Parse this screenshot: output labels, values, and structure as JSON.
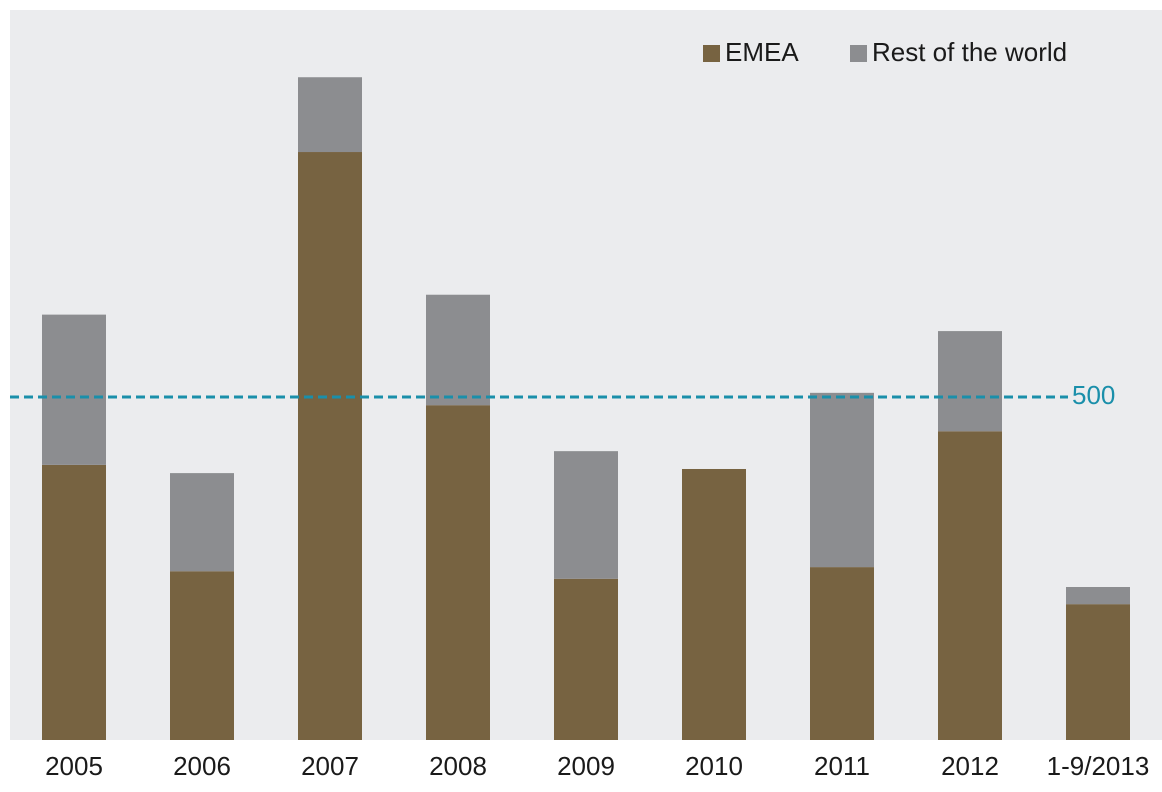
{
  "chart_data": {
    "type": "stacked_bar",
    "categories": [
      "2005",
      "2006",
      "2007",
      "2008",
      "2009",
      "2010",
      "2011",
      "2012",
      "1-9/2013"
    ],
    "series": [
      {
        "name": "EMEA",
        "color": "#776341",
        "values": [
          401,
          246,
          857,
          488,
          235,
          395,
          252,
          450,
          198
        ]
      },
      {
        "name": "Rest of the world",
        "color": "#8c8d90",
        "values": [
          219,
          143,
          109,
          161,
          186,
          0,
          254,
          146,
          25
        ]
      }
    ],
    "ylim": [
      0,
      1064
    ],
    "reference_line": {
      "value": 500,
      "color": "#1a8faa"
    },
    "legend": "top-right"
  }
}
